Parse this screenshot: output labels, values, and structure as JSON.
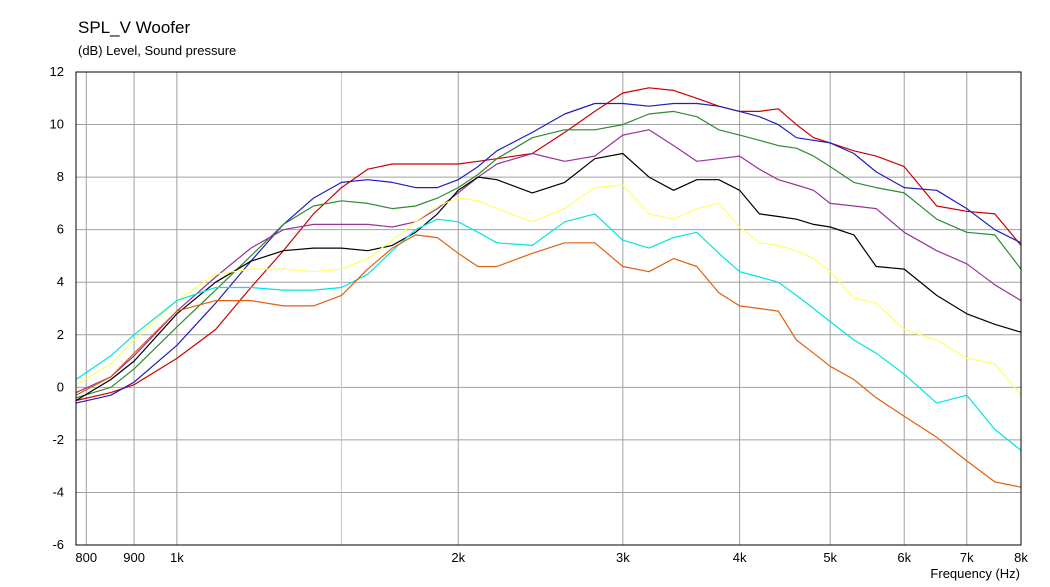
{
  "chart_data": {
    "type": "line",
    "title": "SPL_V Woofer",
    "subtitle": "(dB)  Level, Sound pressure",
    "xlabel": "Frequency  (Hz)",
    "ylabel": "",
    "xscale": "log",
    "xlim": [
      780,
      8000
    ],
    "ylim": [
      -6,
      12
    ],
    "grid": true,
    "legend": "none",
    "xticks": [
      {
        "value": 800,
        "label": "800"
      },
      {
        "value": 900,
        "label": "900"
      },
      {
        "value": 1000,
        "label": "1k"
      },
      {
        "value": 2000,
        "label": "2k"
      },
      {
        "value": 3000,
        "label": "3k"
      },
      {
        "value": 4000,
        "label": "4k"
      },
      {
        "value": 5000,
        "label": "5k"
      },
      {
        "value": 6000,
        "label": "6k"
      },
      {
        "value": 7000,
        "label": "7k"
      },
      {
        "value": 8000,
        "label": "8k"
      }
    ],
    "xgrid_minor": [
      1500
    ],
    "yticks": [
      -6,
      -4,
      -2,
      0,
      2,
      4,
      6,
      8,
      10,
      12
    ],
    "series": [
      {
        "color": "#cc0000",
        "x": [
          780,
          850,
          900,
          1000,
          1100,
          1200,
          1300,
          1400,
          1500,
          1600,
          1700,
          1800,
          1900,
          2000,
          2100,
          2200,
          2400,
          2600,
          2800,
          3000,
          3200,
          3400,
          3600,
          3800,
          4000,
          4200,
          4400,
          4600,
          4800,
          5000,
          5300,
          5600,
          6000,
          6500,
          7000,
          7500,
          8000
        ],
        "y": [
          -0.5,
          -0.2,
          0.1,
          1.1,
          2.2,
          3.8,
          5.2,
          6.6,
          7.6,
          8.3,
          8.5,
          8.5,
          8.5,
          8.5,
          8.6,
          8.7,
          8.9,
          9.7,
          10.5,
          11.2,
          11.4,
          11.3,
          11.0,
          10.7,
          10.5,
          10.5,
          10.6,
          10.0,
          9.5,
          9.3,
          9.0,
          8.8,
          8.4,
          6.9,
          6.7,
          6.6,
          5.4
        ]
      },
      {
        "color": "#1f1fbf",
        "x": [
          780,
          850,
          900,
          1000,
          1100,
          1200,
          1300,
          1400,
          1500,
          1600,
          1700,
          1800,
          1900,
          2000,
          2100,
          2200,
          2400,
          2600,
          2800,
          3000,
          3200,
          3400,
          3600,
          3800,
          4000,
          4200,
          4400,
          4600,
          4800,
          5000,
          5300,
          5600,
          6000,
          6500,
          7000,
          7500,
          8000
        ],
        "y": [
          -0.6,
          -0.3,
          0.2,
          1.6,
          3.2,
          4.8,
          6.2,
          7.2,
          7.8,
          7.9,
          7.8,
          7.6,
          7.6,
          7.9,
          8.4,
          9.0,
          9.7,
          10.4,
          10.8,
          10.8,
          10.7,
          10.8,
          10.8,
          10.7,
          10.5,
          10.3,
          10.0,
          9.5,
          9.4,
          9.3,
          8.9,
          8.2,
          7.6,
          7.5,
          6.8,
          6.0,
          5.5
        ]
      },
      {
        "color": "#2e8b2e",
        "x": [
          780,
          850,
          900,
          1000,
          1100,
          1200,
          1300,
          1400,
          1500,
          1600,
          1700,
          1800,
          1900,
          2000,
          2100,
          2200,
          2400,
          2600,
          2800,
          3000,
          3200,
          3400,
          3600,
          3800,
          4000,
          4200,
          4400,
          4600,
          4800,
          5000,
          5300,
          5600,
          6000,
          6500,
          7000,
          7500,
          8000
        ],
        "y": [
          -0.4,
          0.0,
          0.7,
          2.3,
          3.7,
          5.0,
          6.2,
          6.9,
          7.1,
          7.0,
          6.8,
          6.9,
          7.2,
          7.6,
          8.1,
          8.7,
          9.5,
          9.8,
          9.8,
          10.0,
          10.4,
          10.5,
          10.3,
          9.8,
          9.6,
          9.4,
          9.2,
          9.1,
          8.8,
          8.4,
          7.8,
          7.6,
          7.4,
          6.4,
          5.9,
          5.8,
          4.5
        ]
      },
      {
        "color": "#993399",
        "x": [
          780,
          850,
          900,
          1000,
          1100,
          1200,
          1300,
          1400,
          1500,
          1600,
          1700,
          1800,
          1900,
          2000,
          2100,
          2200,
          2400,
          2600,
          2800,
          3000,
          3200,
          3400,
          3600,
          3800,
          4000,
          4200,
          4400,
          4600,
          4800,
          5000,
          5300,
          5600,
          6000,
          6500,
          7000,
          7500,
          8000
        ],
        "y": [
          -0.2,
          0.4,
          1.2,
          2.9,
          4.2,
          5.3,
          6.0,
          6.2,
          6.2,
          6.2,
          6.1,
          6.3,
          6.8,
          7.4,
          8.0,
          8.5,
          8.9,
          8.6,
          8.8,
          9.6,
          9.8,
          9.2,
          8.6,
          8.7,
          8.8,
          8.3,
          7.9,
          7.7,
          7.5,
          7.0,
          6.9,
          6.8,
          5.9,
          5.2,
          4.7,
          3.9,
          3.3
        ]
      },
      {
        "color": "#000000",
        "x": [
          780,
          850,
          900,
          1000,
          1100,
          1200,
          1300,
          1400,
          1500,
          1600,
          1700,
          1800,
          1900,
          2000,
          2100,
          2200,
          2400,
          2600,
          2800,
          3000,
          3200,
          3400,
          3600,
          3800,
          4000,
          4200,
          4400,
          4600,
          4800,
          5000,
          5300,
          5600,
          6000,
          6500,
          7000,
          7500,
          8000
        ],
        "y": [
          -0.5,
          0.3,
          1.0,
          2.8,
          4.0,
          4.8,
          5.2,
          5.3,
          5.3,
          5.2,
          5.4,
          5.9,
          6.6,
          7.5,
          8.0,
          7.9,
          7.4,
          7.8,
          8.7,
          8.9,
          8.0,
          7.5,
          7.9,
          7.9,
          7.5,
          6.6,
          6.5,
          6.4,
          6.2,
          6.1,
          5.8,
          4.6,
          4.5,
          3.5,
          2.8,
          2.4,
          2.1
        ]
      },
      {
        "color": "#ffff66",
        "x": [
          780,
          850,
          900,
          1000,
          1100,
          1200,
          1300,
          1400,
          1500,
          1600,
          1700,
          1800,
          1900,
          2000,
          2100,
          2200,
          2400,
          2600,
          2800,
          3000,
          3200,
          3400,
          3600,
          3800,
          4000,
          4200,
          4400,
          4600,
          4800,
          5000,
          5300,
          5600,
          6000,
          6500,
          7000,
          7500,
          8000
        ],
        "y": [
          0.1,
          0.9,
          1.8,
          3.3,
          4.3,
          4.5,
          4.5,
          4.4,
          4.5,
          4.9,
          5.6,
          6.3,
          6.9,
          7.2,
          7.1,
          6.8,
          6.3,
          6.8,
          7.6,
          7.7,
          6.6,
          6.4,
          6.8,
          7.0,
          6.1,
          5.5,
          5.4,
          5.2,
          4.9,
          4.4,
          3.4,
          3.2,
          2.2,
          1.8,
          1.1,
          0.9,
          -0.3
        ]
      },
      {
        "color": "#00e5e5",
        "x": [
          780,
          850,
          900,
          1000,
          1100,
          1200,
          1300,
          1400,
          1500,
          1600,
          1700,
          1800,
          1900,
          2000,
          2100,
          2200,
          2400,
          2600,
          2800,
          3000,
          3200,
          3400,
          3600,
          3800,
          4000,
          4200,
          4400,
          4600,
          4800,
          5000,
          5300,
          5600,
          6000,
          6500,
          7000,
          7500,
          8000
        ],
        "y": [
          0.3,
          1.2,
          2.0,
          3.3,
          3.8,
          3.8,
          3.7,
          3.7,
          3.8,
          4.3,
          5.2,
          6.0,
          6.4,
          6.3,
          5.9,
          5.5,
          5.4,
          6.3,
          6.6,
          5.6,
          5.3,
          5.7,
          5.9,
          5.1,
          4.4,
          4.2,
          4.0,
          3.5,
          3.0,
          2.5,
          1.8,
          1.3,
          0.5,
          -0.6,
          -0.3,
          -1.6,
          -2.4
        ]
      },
      {
        "color": "#e06010",
        "x": [
          780,
          850,
          900,
          1000,
          1100,
          1200,
          1300,
          1400,
          1500,
          1600,
          1700,
          1800,
          1900,
          2000,
          2100,
          2200,
          2400,
          2600,
          2800,
          3000,
          3200,
          3400,
          3600,
          3800,
          4000,
          4200,
          4400,
          4600,
          4800,
          5000,
          5300,
          5600,
          6000,
          6500,
          7000,
          7500,
          8000
        ],
        "y": [
          -0.3,
          0.4,
          1.3,
          2.9,
          3.3,
          3.3,
          3.1,
          3.1,
          3.5,
          4.5,
          5.3,
          5.8,
          5.7,
          5.1,
          4.6,
          4.6,
          5.1,
          5.5,
          5.5,
          4.6,
          4.4,
          4.9,
          4.6,
          3.6,
          3.1,
          3.0,
          2.9,
          1.8,
          1.3,
          0.8,
          0.3,
          -0.4,
          -1.1,
          -1.9,
          -2.8,
          -3.6,
          -3.8
        ]
      }
    ]
  }
}
